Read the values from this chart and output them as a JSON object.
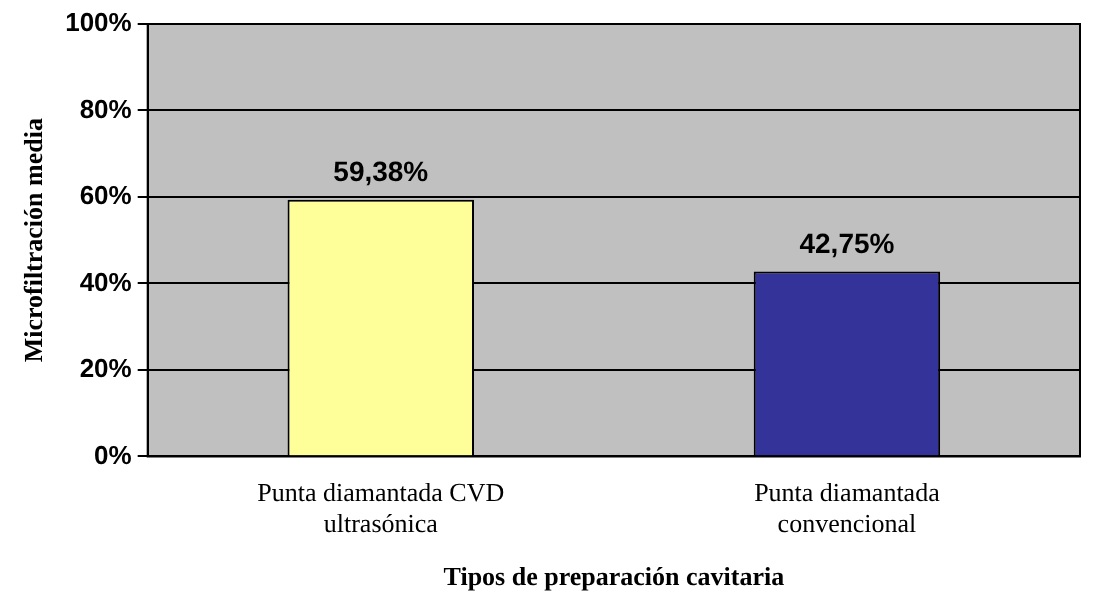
{
  "chart_data": {
    "type": "bar",
    "xlabel": "Tipos de preparación cavitaria",
    "ylabel": "Microfiltración media",
    "categories": [
      "Punta diamantada CVD\nultrasónica",
      "Punta diamantada\nconvencional"
    ],
    "values": [
      59.38,
      42.75
    ],
    "colors": [
      "#ffff99",
      "#333399"
    ],
    "value_labels": [
      "59,38%",
      "42,75%"
    ],
    "ylim": [
      0,
      100
    ],
    "yticks": [
      {
        "value": 0,
        "label": "0%"
      },
      {
        "value": 20,
        "label": "20%"
      },
      {
        "value": 40,
        "label": "40%"
      },
      {
        "value": 60,
        "label": "60%"
      },
      {
        "value": 80,
        "label": "80%"
      },
      {
        "value": 100,
        "label": "100%"
      }
    ],
    "grid": "y",
    "legend": false
  }
}
